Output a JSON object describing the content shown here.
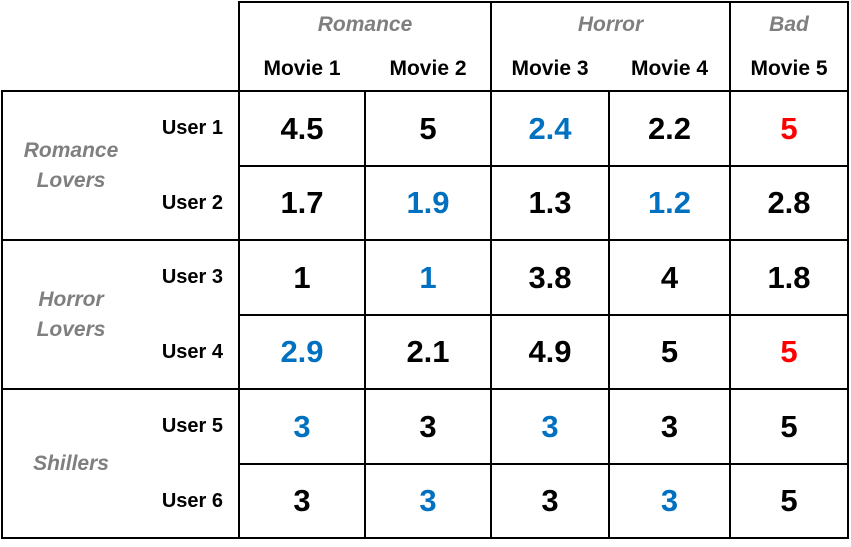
{
  "genres": [
    {
      "label": "Romance",
      "span": 2
    },
    {
      "label": "Horror",
      "span": 2
    },
    {
      "label": "Bad",
      "span": 1
    }
  ],
  "movies": [
    "Movie 1",
    "Movie 2",
    "Movie 3",
    "Movie 4",
    "Movie 5"
  ],
  "groups": [
    {
      "lines": [
        "Romance",
        "Lovers"
      ],
      "users": [
        "User 1",
        "User 2"
      ]
    },
    {
      "lines": [
        "Horror",
        "Lovers"
      ],
      "users": [
        "User 3",
        "User 4"
      ]
    },
    {
      "lines": [
        "Shillers"
      ],
      "users": [
        "User 5",
        "User 6"
      ]
    }
  ],
  "ratings": [
    [
      "4.5",
      "5",
      "2.4",
      "2.2",
      "5"
    ],
    [
      "1.7",
      "1.9",
      "1.3",
      "1.2",
      "2.8"
    ],
    [
      "1",
      "1",
      "3.8",
      "4",
      "1.8"
    ],
    [
      "2.9",
      "2.1",
      "4.9",
      "5",
      "5"
    ],
    [
      "3",
      "3",
      "3",
      "3",
      "5"
    ],
    [
      "3",
      "3",
      "3",
      "3",
      "5"
    ]
  ],
  "highlight": [
    [
      "black",
      "black",
      "blue",
      "black",
      "red"
    ],
    [
      "black",
      "blue",
      "black",
      "blue",
      "black"
    ],
    [
      "black",
      "blue",
      "black",
      "black",
      "black"
    ],
    [
      "blue",
      "black",
      "black",
      "black",
      "red"
    ],
    [
      "blue",
      "black",
      "blue",
      "black",
      "black"
    ],
    [
      "black",
      "blue",
      "black",
      "blue",
      "black"
    ]
  ],
  "colors": {
    "black": "#000000",
    "blue": "#0070c0",
    "red": "#ff0000",
    "gray": "#7f7f7f"
  }
}
